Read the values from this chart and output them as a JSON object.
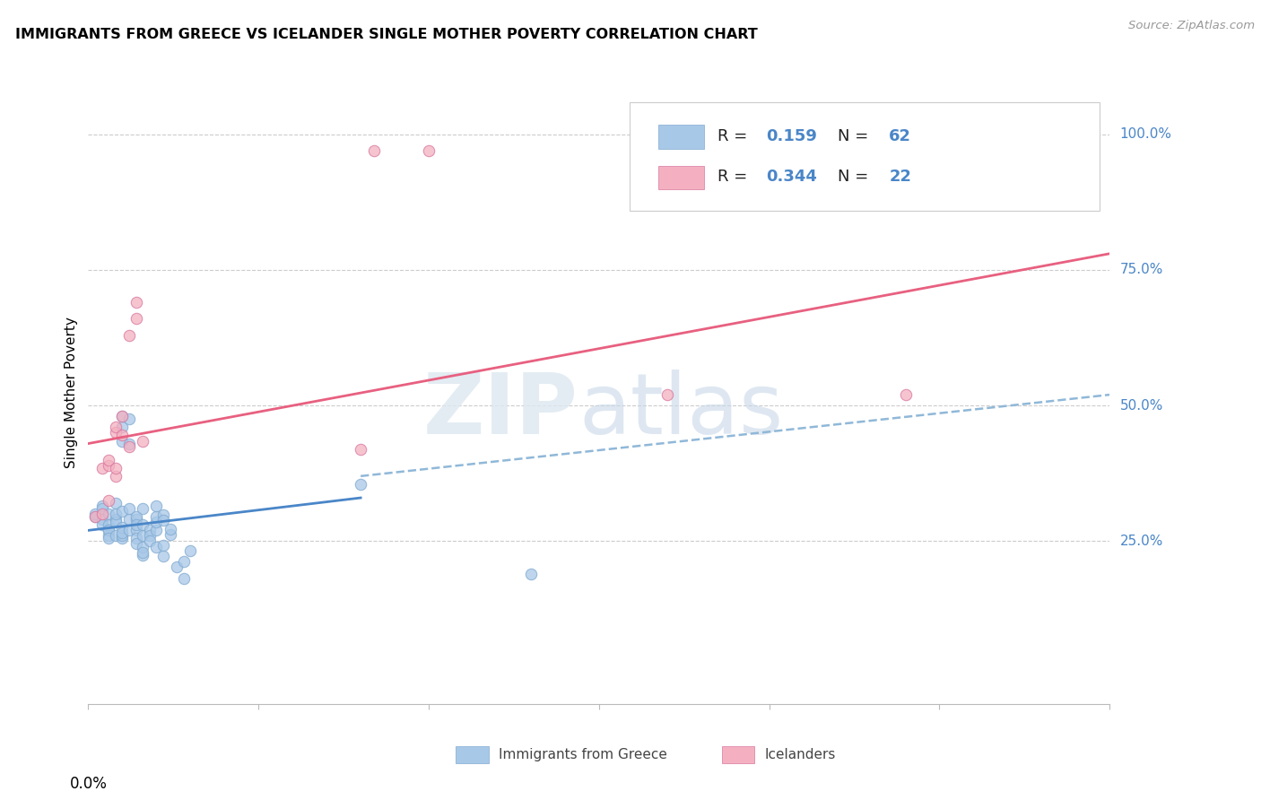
{
  "title": "IMMIGRANTS FROM GREECE VS ICELANDER SINGLE MOTHER POVERTY CORRELATION CHART",
  "source": "Source: ZipAtlas.com",
  "ylabel": "Single Mother Poverty",
  "blue_color": "#a8c8e8",
  "pink_color": "#f4b0c0",
  "blue_line_color": "#4a86c8",
  "pink_line_color": "#e86080",
  "blue_scatter": [
    [
      0.001,
      0.295
    ],
    [
      0.001,
      0.3
    ],
    [
      0.002,
      0.315
    ],
    [
      0.002,
      0.29
    ],
    [
      0.002,
      0.28
    ],
    [
      0.002,
      0.31
    ],
    [
      0.003,
      0.28
    ],
    [
      0.003,
      0.27
    ],
    [
      0.003,
      0.26
    ],
    [
      0.003,
      0.3
    ],
    [
      0.003,
      0.27
    ],
    [
      0.003,
      0.255
    ],
    [
      0.004,
      0.26
    ],
    [
      0.004,
      0.32
    ],
    [
      0.004,
      0.29
    ],
    [
      0.004,
      0.285
    ],
    [
      0.004,
      0.3
    ],
    [
      0.005,
      0.255
    ],
    [
      0.005,
      0.26
    ],
    [
      0.005,
      0.275
    ],
    [
      0.005,
      0.265
    ],
    [
      0.005,
      0.305
    ],
    [
      0.005,
      0.435
    ],
    [
      0.005,
      0.46
    ],
    [
      0.005,
      0.48
    ],
    [
      0.006,
      0.27
    ],
    [
      0.006,
      0.29
    ],
    [
      0.006,
      0.31
    ],
    [
      0.006,
      0.43
    ],
    [
      0.006,
      0.475
    ],
    [
      0.007,
      0.27
    ],
    [
      0.007,
      0.29
    ],
    [
      0.007,
      0.295
    ],
    [
      0.007,
      0.28
    ],
    [
      0.007,
      0.255
    ],
    [
      0.007,
      0.245
    ],
    [
      0.008,
      0.225
    ],
    [
      0.008,
      0.24
    ],
    [
      0.008,
      0.23
    ],
    [
      0.008,
      0.26
    ],
    [
      0.008,
      0.28
    ],
    [
      0.008,
      0.31
    ],
    [
      0.009,
      0.27
    ],
    [
      0.009,
      0.26
    ],
    [
      0.009,
      0.25
    ],
    [
      0.01,
      0.24
    ],
    [
      0.01,
      0.27
    ],
    [
      0.01,
      0.285
    ],
    [
      0.01,
      0.295
    ],
    [
      0.01,
      0.315
    ],
    [
      0.011,
      0.242
    ],
    [
      0.011,
      0.222
    ],
    [
      0.011,
      0.298
    ],
    [
      0.011,
      0.288
    ],
    [
      0.012,
      0.263
    ],
    [
      0.012,
      0.273
    ],
    [
      0.013,
      0.202
    ],
    [
      0.014,
      0.182
    ],
    [
      0.014,
      0.212
    ],
    [
      0.015,
      0.232
    ],
    [
      0.04,
      0.355
    ],
    [
      0.065,
      0.19
    ]
  ],
  "pink_scatter": [
    [
      0.001,
      0.295
    ],
    [
      0.002,
      0.3
    ],
    [
      0.002,
      0.385
    ],
    [
      0.003,
      0.325
    ],
    [
      0.003,
      0.39
    ],
    [
      0.003,
      0.4
    ],
    [
      0.004,
      0.37
    ],
    [
      0.004,
      0.385
    ],
    [
      0.004,
      0.45
    ],
    [
      0.004,
      0.46
    ],
    [
      0.005,
      0.48
    ],
    [
      0.005,
      0.445
    ],
    [
      0.006,
      0.425
    ],
    [
      0.006,
      0.63
    ],
    [
      0.007,
      0.66
    ],
    [
      0.007,
      0.69
    ],
    [
      0.008,
      0.435
    ],
    [
      0.04,
      0.42
    ],
    [
      0.042,
      0.97
    ],
    [
      0.05,
      0.97
    ],
    [
      0.085,
      0.52
    ],
    [
      0.12,
      0.52
    ]
  ],
  "blue_solid_line": [
    [
      0.0,
      0.27
    ],
    [
      0.04,
      0.33
    ]
  ],
  "blue_dashed_line": [
    [
      0.04,
      0.37
    ],
    [
      0.15,
      0.52
    ]
  ],
  "pink_solid_line": [
    [
      0.0,
      0.43
    ],
    [
      0.15,
      0.78
    ]
  ],
  "xlim": [
    0.0,
    0.15
  ],
  "ylim": [
    -0.05,
    1.1
  ],
  "ytick_positions": [
    0.0,
    0.25,
    0.5,
    0.75,
    1.0
  ],
  "ytick_labels": [
    "",
    "25.0%",
    "50.0%",
    "75.0%",
    "100.0%"
  ],
  "xtick_positions": [
    0.0,
    0.025,
    0.05,
    0.075,
    0.1,
    0.125,
    0.15
  ],
  "watermark_zip": "ZIP",
  "watermark_atlas": "atlas",
  "figsize": [
    14.06,
    8.92
  ]
}
